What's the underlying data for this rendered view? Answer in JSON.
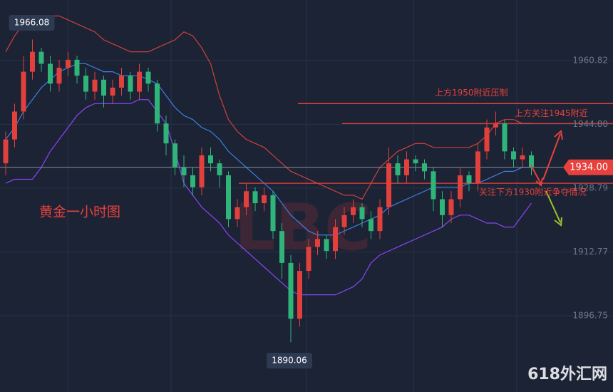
{
  "chart_data": {
    "type": "candlestick",
    "title": "黄金一小时图",
    "watermark": "LBC",
    "site": "618外汇网",
    "up_color": "#e2403c",
    "down_color": "#2fb57a",
    "grid": true,
    "ylim": [
      1877.6,
      1976.0
    ],
    "yticks": [
      1896.75,
      1912.77,
      1928.79,
      {
        "value": 1944.8,
        "label": "1944.80"
      },
      1960.82
    ],
    "open": [
      1935,
      1941,
      1948,
      1958,
      1963,
      1960,
      1955,
      1959,
      1961,
      1957,
      1953,
      1956,
      1952,
      1954,
      1957,
      1953,
      1958,
      1955,
      1945,
      1940,
      1934,
      1932,
      1929,
      1937,
      1935,
      1932,
      1921,
      1924,
      1928,
      1925,
      1927,
      1918,
      1910,
      1896,
      1908,
      1914,
      1916,
      1913,
      1919,
      1922,
      1924,
      1921,
      1918,
      1924,
      1935,
      1932,
      1936,
      1935,
      1933,
      1926,
      1922,
      1926,
      1932,
      1930,
      1938,
      1944,
      1945,
      1938,
      1936,
      1937
    ],
    "high": [
      1943,
      1950,
      1962,
      1966.08,
      1964,
      1962,
      1961,
      1963,
      1962,
      1959,
      1958,
      1957,
      1956,
      1959,
      1958,
      1960,
      1959,
      1956,
      1947,
      1941,
      1937,
      1934,
      1939,
      1939,
      1936,
      1933,
      1926,
      1930,
      1929,
      1929,
      1928,
      1920,
      1912,
      1910,
      1916,
      1918,
      1917,
      1921,
      1924,
      1926,
      1925,
      1923,
      1926,
      1939,
      1937,
      1938,
      1937,
      1936,
      1934,
      1928,
      1928,
      1934,
      1933,
      1940,
      1946,
      1948,
      1946,
      1939,
      1939,
      1938
    ],
    "low": [
      1932,
      1939,
      1946,
      1956,
      1958,
      1953,
      1953,
      1957,
      1955,
      1951,
      1951,
      1949,
      1950,
      1952,
      1951,
      1951,
      1953,
      1943,
      1937,
      1932,
      1929,
      1927,
      1927,
      1933,
      1929,
      1919,
      1919,
      1922,
      1923,
      1923,
      1916,
      1906,
      1890.06,
      1894,
      1906,
      1912,
      1911,
      1911,
      1917,
      1920,
      1919,
      1916,
      1916,
      1922,
      1930,
      1930,
      1933,
      1931,
      1923,
      1919,
      1920,
      1924,
      1928,
      1928,
      1936,
      1942,
      1936,
      1934,
      1934,
      1932
    ],
    "close": [
      1941,
      1948,
      1958,
      1963,
      1960,
      1955,
      1959,
      1961,
      1957,
      1953,
      1956,
      1952,
      1954,
      1957,
      1953,
      1958,
      1955,
      1945,
      1940,
      1934,
      1932,
      1929,
      1937,
      1935,
      1932,
      1921,
      1924,
      1928,
      1925,
      1927,
      1918,
      1910,
      1896,
      1908,
      1914,
      1916,
      1913,
      1919,
      1922,
      1924,
      1921,
      1918,
      1924,
      1935,
      1932,
      1936,
      1935,
      1933,
      1926,
      1922,
      1926,
      1932,
      1930,
      1938,
      1944,
      1945,
      1938,
      1936,
      1937,
      1934
    ],
    "bands": [
      {
        "color": "#d0413a",
        "values": [
          1963,
          1967,
          1970,
          1971,
          1972,
          1972,
          1972,
          1971,
          1970,
          1969,
          1968,
          1966,
          1965,
          1964,
          1963,
          1963,
          1963,
          1964,
          1965,
          1966,
          1968,
          1967,
          1964,
          1960,
          1952,
          1946,
          1943,
          1941,
          1940,
          1939,
          1937,
          1935,
          1933,
          1932,
          1931,
          1930,
          1929,
          1928,
          1927,
          1927,
          1926,
          1930,
          1934,
          1936,
          1938,
          1939,
          1940,
          1940,
          1939,
          1939,
          1939,
          1939,
          1939,
          1940,
          1942,
          1945,
          1946,
          1946,
          1945,
          1945
        ]
      },
      {
        "color": "#3d7fe0",
        "values": [
          1941,
          1944,
          1948,
          1951,
          1954,
          1956,
          1958,
          1959,
          1960,
          1960,
          1959,
          1958,
          1958,
          1957,
          1957,
          1957,
          1956,
          1955,
          1952,
          1949,
          1947,
          1946,
          1944,
          1943,
          1941,
          1938,
          1936,
          1934,
          1932,
          1930,
          1928,
          1925,
          1922,
          1920,
          1918,
          1917,
          1917,
          1917,
          1918,
          1919,
          1920,
          1921,
          1922,
          1924,
          1925,
          1926,
          1927,
          1928,
          1929,
          1929,
          1929,
          1929,
          1930,
          1930,
          1931,
          1932,
          1933,
          1933,
          1934,
          1934
        ]
      },
      {
        "color": "#8b45f2",
        "values": [
          1930,
          1931,
          1931,
          1931,
          1934,
          1938,
          1941,
          1944,
          1947,
          1949,
          1950,
          1950,
          1950,
          1950,
          1950,
          1951,
          1951,
          1948,
          1945,
          1938,
          1930,
          1927,
          1924,
          1922,
          1920,
          1917,
          1915,
          1913,
          1911,
          1909,
          1907,
          1905,
          1903,
          1902,
          1902,
          1902,
          1902,
          1902,
          1903,
          1904,
          1906,
          1910,
          1912,
          1913,
          1914,
          1915,
          1916,
          1917,
          1918,
          1919,
          1921,
          1922,
          1922,
          1921,
          1920,
          1920,
          1919,
          1919,
          1922,
          1925
        ]
      }
    ],
    "last_price": {
      "value": 1934,
      "label": "1934.00"
    },
    "levels": [
      {
        "text": "上方1950附近压制",
        "value": 1950
      },
      {
        "text": "上方关注1945附近",
        "value": 1945
      },
      {
        "text": "关注下方1930附近争夺情况",
        "value": 1930
      }
    ]
  }
}
